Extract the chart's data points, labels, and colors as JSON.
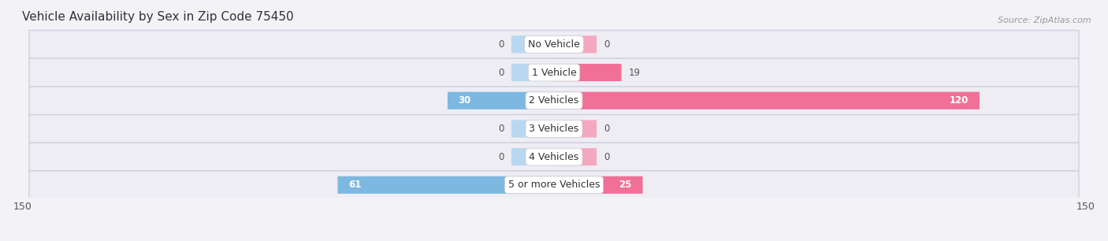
{
  "title": "Vehicle Availability by Sex in Zip Code 75450",
  "source": "Source: ZipAtlas.com",
  "categories": [
    "No Vehicle",
    "1 Vehicle",
    "2 Vehicles",
    "3 Vehicles",
    "4 Vehicles",
    "5 or more Vehicles"
  ],
  "male_values": [
    0,
    0,
    30,
    0,
    0,
    61
  ],
  "female_values": [
    0,
    19,
    120,
    0,
    0,
    25
  ],
  "male_color": "#7db8e0",
  "male_color_light": "#b8d8f0",
  "female_color": "#f07098",
  "female_color_light": "#f4a8c0",
  "axis_max": 150,
  "min_stub": 12,
  "bar_height": 0.58,
  "bg_color": "#f2f2f7",
  "row_bg_color": "#ebebf2",
  "row_border_color": "#d8d8e8",
  "title_color": "#333333",
  "source_color": "#999999",
  "value_color_outside": "#555555",
  "value_color_inside": "#ffffff",
  "label_fontsize": 9,
  "title_fontsize": 11,
  "source_fontsize": 8,
  "value_fontsize": 8.5
}
